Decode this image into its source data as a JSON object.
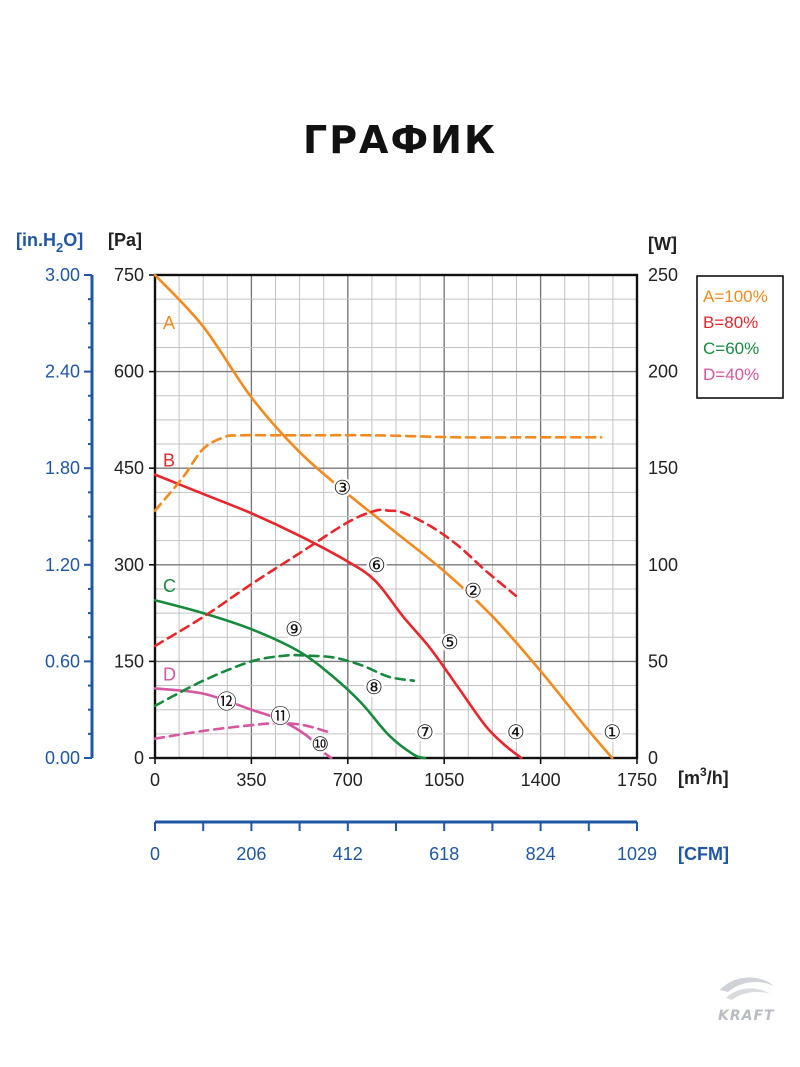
{
  "title": "ГРАФИК",
  "brand": "KRAFT",
  "colors": {
    "A": "#f28a1f",
    "B": "#e8262b",
    "C": "#178a3e",
    "D": "#d6569f",
    "axis_blue": "#1f57a5",
    "grid_major": "#7a7a7a",
    "grid_minor": "#c2c2c2"
  },
  "chart_data": {
    "type": "line",
    "x_axis": {
      "unit": "[m³/h]",
      "unit_base": "[m",
      "unit_sup": "3",
      "unit_tail": "/h]",
      "range": [
        0,
        1750
      ],
      "ticks": [
        "0",
        "350",
        "700",
        "1050",
        "1400",
        "1750"
      ]
    },
    "cfm_axis": {
      "unit": "[CFM]",
      "range": [
        0,
        1029
      ],
      "ticks": [
        "0",
        "206",
        "412",
        "618",
        "824",
        "1029"
      ]
    },
    "y_left_pa": {
      "unit": "[Pa]",
      "range": [
        0,
        750
      ],
      "ticks": [
        "0",
        "150",
        "300",
        "450",
        "600",
        "750"
      ]
    },
    "y_left_inh2o": {
      "unit": "[in.H2O]",
      "unit_base": "[in.H",
      "unit_sub": "2",
      "unit_tail": "O]",
      "range": [
        0,
        3.0
      ],
      "ticks": [
        "0.00",
        "0.60",
        "1.20",
        "1.80",
        "2.40",
        "3.00"
      ]
    },
    "y_right_w": {
      "unit": "[W]",
      "range": [
        0,
        250
      ],
      "ticks": [
        "0",
        "50",
        "100",
        "150",
        "200",
        "250"
      ]
    },
    "grid": true,
    "legend": [
      {
        "key": "A",
        "label": "A=100%"
      },
      {
        "key": "B",
        "label": "B=80%"
      },
      {
        "key": "C",
        "label": "C=60%"
      },
      {
        "key": "D",
        "label": "D=40%"
      }
    ],
    "series": [
      {
        "name": "A",
        "kind": "pressure",
        "label": "A",
        "x": [
          0,
          175,
          350,
          525,
          700,
          875,
          1050,
          1225,
          1400,
          1560,
          1660
        ],
        "y": [
          750,
          670,
          560,
          475,
          410,
          350,
          290,
          220,
          135,
          50,
          0
        ]
      },
      {
        "name": "B",
        "kind": "pressure",
        "label": "B",
        "x": [
          0,
          175,
          350,
          525,
          700,
          800,
          900,
          1000,
          1100,
          1200,
          1270,
          1330
        ],
        "y": [
          440,
          410,
          380,
          345,
          305,
          275,
          220,
          170,
          110,
          50,
          20,
          0
        ]
      },
      {
        "name": "C",
        "kind": "pressure",
        "label": "C",
        "x": [
          0,
          175,
          350,
          525,
          650,
          750,
          850,
          940,
          980
        ],
        "y": [
          245,
          225,
          200,
          165,
          125,
          85,
          35,
          5,
          0
        ]
      },
      {
        "name": "D",
        "kind": "pressure",
        "label": "D",
        "x": [
          0,
          175,
          350,
          450,
          550,
          610,
          640
        ],
        "y": [
          108,
          100,
          75,
          60,
          35,
          10,
          0
        ]
      },
      {
        "name": "A",
        "kind": "power",
        "x": [
          0,
          100,
          175,
          250,
          300,
          500,
          800,
          1100,
          1400,
          1620
        ],
        "y": [
          128,
          145,
          160,
          166,
          167,
          167,
          167,
          166,
          166,
          166
        ]
      },
      {
        "name": "B",
        "kind": "power",
        "x": [
          0,
          175,
          350,
          525,
          700,
          800,
          850,
          900,
          1000,
          1100,
          1200,
          1310
        ],
        "y": [
          58,
          73,
          90,
          106,
          122,
          128,
          128,
          127,
          120,
          110,
          97,
          84
        ]
      },
      {
        "name": "C",
        "kind": "power",
        "x": [
          0,
          175,
          350,
          475,
          550,
          650,
          750,
          850,
          940
        ],
        "y": [
          27,
          40,
          50,
          53,
          53,
          52,
          48,
          42,
          40
        ]
      },
      {
        "name": "D",
        "kind": "power",
        "x": [
          0,
          175,
          350,
          450,
          540,
          640
        ],
        "y": [
          10,
          14,
          17,
          18,
          17,
          13
        ]
      }
    ],
    "markers": [
      {
        "label": "①",
        "x": 1660,
        "y": 40
      },
      {
        "label": "②",
        "x": 1155,
        "y": 260
      },
      {
        "label": "③",
        "x": 680,
        "y": 420
      },
      {
        "label": "④",
        "x": 1310,
        "y": 40
      },
      {
        "label": "⑤",
        "x": 1070,
        "y": 180
      },
      {
        "label": "⑥",
        "x": 805,
        "y": 300
      },
      {
        "label": "⑦",
        "x": 980,
        "y": 40
      },
      {
        "label": "⑧",
        "x": 795,
        "y": 110
      },
      {
        "label": "⑨",
        "x": 505,
        "y": 200
      },
      {
        "label": "⑩",
        "x": 600,
        "y": 22
      },
      {
        "label": "⑪",
        "x": 455,
        "y": 65
      },
      {
        "label": "⑫",
        "x": 260,
        "y": 88
      }
    ]
  }
}
